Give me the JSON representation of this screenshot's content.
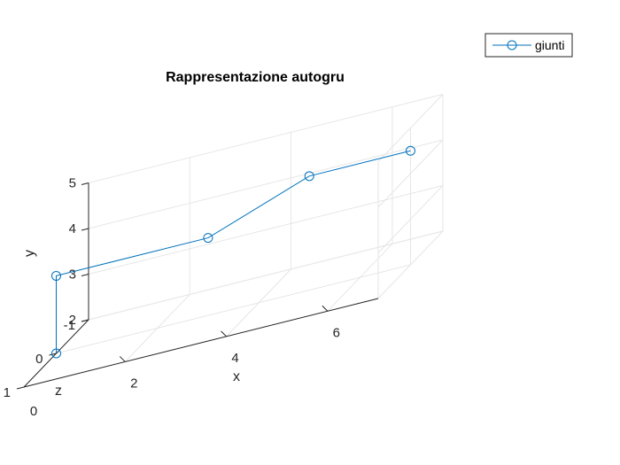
{
  "chart_data": {
    "type": "line3d",
    "title": "Rappresentazione autogru",
    "xlabel": "x",
    "ylabel": "y",
    "zlabel": "z",
    "xlim": [
      0,
      7
    ],
    "ylim": [
      2,
      5
    ],
    "zlim": [
      -1,
      1
    ],
    "xticks": [
      2,
      4,
      6
    ],
    "yticks": [
      2,
      3,
      4,
      5
    ],
    "zticks": [
      -1,
      0,
      1
    ],
    "xtick_labels": [
      "2",
      "4",
      "6"
    ],
    "ytick_labels": [
      "2",
      "3",
      "4",
      "5"
    ],
    "ztick_labels": [
      "-1",
      "0",
      "1"
    ],
    "xtick_extra_label": "0",
    "grid": true,
    "legend": {
      "position": "top-right",
      "entries": [
        "giunti"
      ]
    },
    "series": [
      {
        "name": "giunti",
        "color": "#0072BD",
        "marker": "circle",
        "points": [
          {
            "x": 0,
            "y": 2,
            "z": 0
          },
          {
            "x": 0,
            "y": 3.7,
            "z": 0
          },
          {
            "x": 3,
            "y": 3.7,
            "z": 0
          },
          {
            "x": 5,
            "y": 4.5,
            "z": 0
          },
          {
            "x": 7,
            "y": 4.5,
            "z": 0
          }
        ]
      }
    ]
  }
}
